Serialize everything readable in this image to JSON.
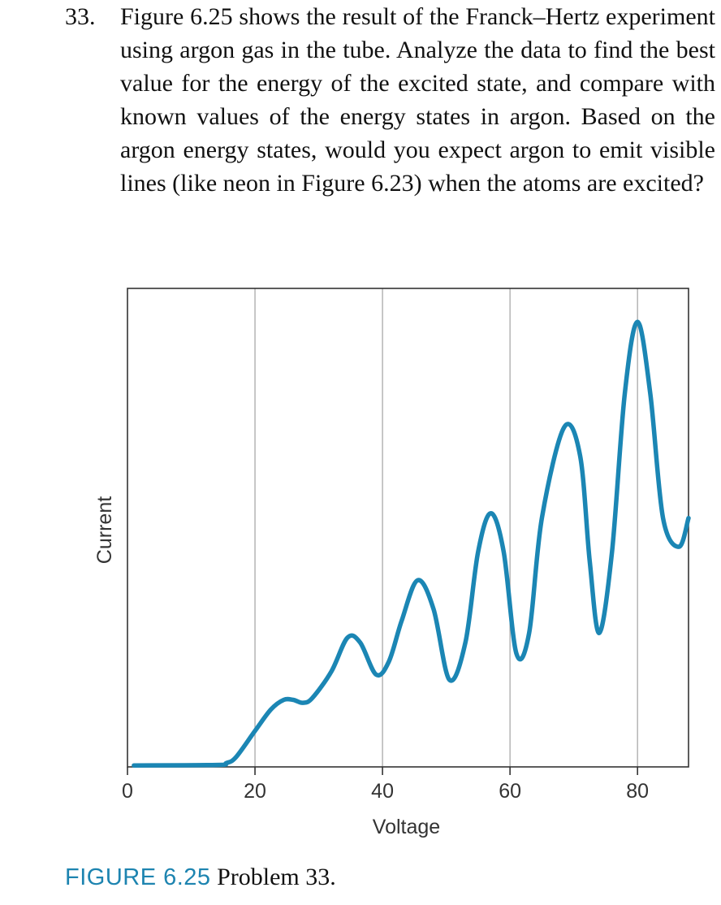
{
  "problem": {
    "number": "33.",
    "text": "Figure 6.25 shows the result of the Franck–Hertz experiment using argon gas in the tube. Analyze the data to find the best value for the energy of the excited state, and compare with known values of the energy states in argon. Based on the argon energy states, would you expect argon to emit visible lines (like neon in Figure 6.23) when the atoms are excited?"
  },
  "caption": {
    "figure_label": "FIGURE 6.25",
    "text": "Problem 33."
  },
  "chart_data": {
    "type": "line",
    "xlabel": "Voltage",
    "ylabel": "Current",
    "xlim": [
      0,
      88
    ],
    "ylim": [
      0,
      100
    ],
    "xticks": [
      "0",
      "20",
      "40",
      "60",
      "80"
    ],
    "grid": "vertical lines at x = 20, 40, 60, 80",
    "line_color": "#1b86b4",
    "series": [
      {
        "x": [
          1,
          14,
          15.5,
          17,
          20,
          22.5,
          24.5,
          26,
          27.5,
          29,
          32,
          34.5,
          36.5,
          39,
          41,
          43,
          45.5,
          48,
          50.5,
          53,
          55,
          57,
          59,
          61,
          63,
          65,
          68.5,
          71,
          72.5,
          74,
          76,
          78,
          80,
          82,
          84,
          86.5,
          88
        ],
        "y": [
          0.3,
          0.4,
          0.8,
          2,
          7.5,
          12,
          14,
          14,
          13.4,
          14.4,
          20,
          27,
          26,
          19.3,
          22,
          30.5,
          39,
          33,
          18.2,
          26,
          45,
          53,
          45,
          23.7,
          28,
          52,
          71,
          65,
          43,
          28,
          45,
          78,
          93,
          78,
          52,
          46,
          52
        ]
      }
    ]
  }
}
